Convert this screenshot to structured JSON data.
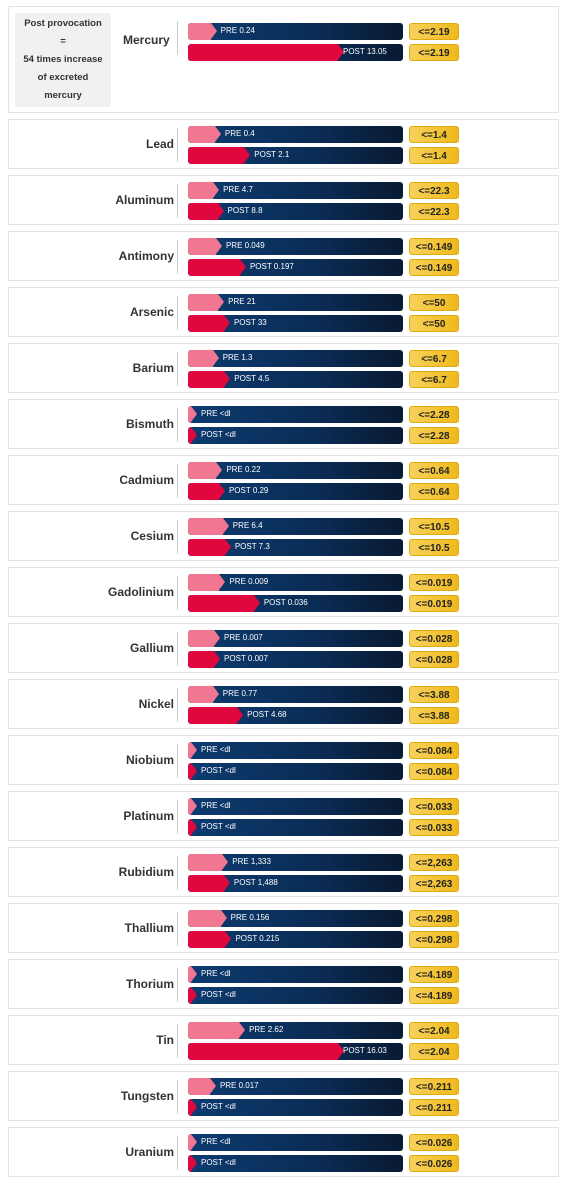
{
  "note": [
    "Post provocation",
    "=",
    "54 times increase",
    "of excreted",
    "mercury"
  ],
  "chart_data": {
    "type": "bar",
    "orientation": "horizontal",
    "series_names": [
      "PRE",
      "POST"
    ],
    "colors": {
      "pre": "#f07692",
      "post": "#e0073f",
      "track": "#0a2c55",
      "reference": "#f3c232"
    },
    "rows": [
      {
        "element": "Mercury",
        "pre": "0.24",
        "post": "13.05",
        "ref": "<=2.19"
      },
      {
        "element": "Lead",
        "pre": "0.4",
        "post": "2.1",
        "ref": "<=1.4"
      },
      {
        "element": "Aluminum",
        "pre": "4.7",
        "post": "8.8",
        "ref": "<=22.3"
      },
      {
        "element": "Antimony",
        "pre": "0.049",
        "post": "0.197",
        "ref": "<=0.149"
      },
      {
        "element": "Arsenic",
        "pre": "21",
        "post": "33",
        "ref": "<=50"
      },
      {
        "element": "Barium",
        "pre": "1.3",
        "post": "4.5",
        "ref": "<=6.7"
      },
      {
        "element": "Bismuth",
        "pre": "<dl",
        "post": "<dl",
        "ref": "<=2.28"
      },
      {
        "element": "Cadmium",
        "pre": "0.22",
        "post": "0.29",
        "ref": "<=0.64"
      },
      {
        "element": "Cesium",
        "pre": "6.4",
        "post": "7.3",
        "ref": "<=10.5"
      },
      {
        "element": "Gadolinium",
        "pre": "0.009",
        "post": "0.036",
        "ref": "<=0.019"
      },
      {
        "element": "Gallium",
        "pre": "0.007",
        "post": "0.007",
        "ref": "<=0.028"
      },
      {
        "element": "Nickel",
        "pre": "0.77",
        "post": "4.68",
        "ref": "<=3.88"
      },
      {
        "element": "Niobium",
        "pre": "<dl",
        "post": "<dl",
        "ref": "<=0.084"
      },
      {
        "element": "Platinum",
        "pre": "<dl",
        "post": "<dl",
        "ref": "<=0.033"
      },
      {
        "element": "Rubidium",
        "pre": "1,333",
        "post": "1,488",
        "ref": "<=2,263"
      },
      {
        "element": "Thallium",
        "pre": "0.156",
        "post": "0.215",
        "ref": "<=0.298"
      },
      {
        "element": "Thorium",
        "pre": "<dl",
        "post": "<dl",
        "ref": "<=4.189"
      },
      {
        "element": "Tin",
        "pre": "2.62",
        "post": "16.03",
        "ref": "<=2.04"
      },
      {
        "element": "Tungsten",
        "pre": "0.017",
        "post": "<dl",
        "ref": "<=0.211"
      },
      {
        "element": "Uranium",
        "pre": "<dl",
        "post": "<dl",
        "ref": "<=0.026"
      }
    ]
  }
}
